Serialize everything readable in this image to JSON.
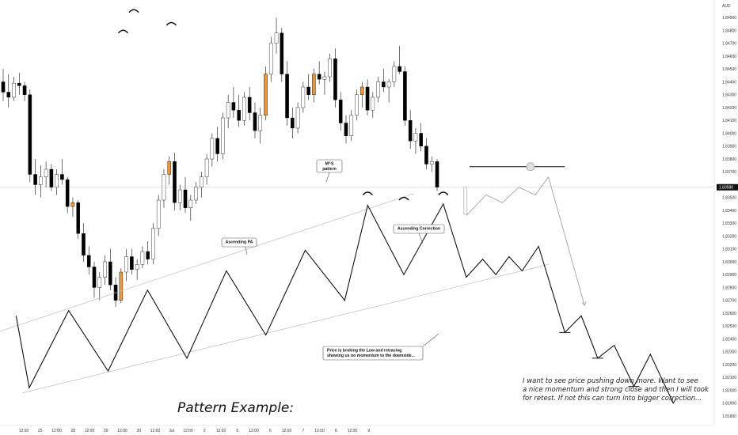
{
  "chart_data": {
    "type": "candlestick",
    "symbol_unit": "AUD",
    "current_price": "1.83580",
    "ylim": [
      1.818,
      1.85
    ],
    "y_ticks": [
      "1.84900",
      "1.84800",
      "1.84700",
      "1.84600",
      "1.84500",
      "1.84400",
      "1.84300",
      "1.84200",
      "1.84100",
      "1.84000",
      "1.83900",
      "1.83800",
      "1.83700",
      "1.83500",
      "1.83400",
      "1.83300",
      "1.83200",
      "1.83100",
      "1.83000",
      "1.82900",
      "1.82800",
      "1.82700",
      "1.82600",
      "1.82500",
      "1.82400",
      "1.82300",
      "1.82200",
      "1.82100",
      "1.82000",
      "1.81900",
      "1.81800"
    ],
    "x_ticks": [
      "12:00",
      "25",
      "12:00",
      "28",
      "12:00",
      "29",
      "12:00",
      "30",
      "12:00",
      "Jul",
      "12:00",
      "2",
      "12:00",
      "5",
      "12:00",
      "6",
      "12:00",
      "7",
      "12:00",
      "8",
      "12:00",
      "9"
    ],
    "candles": [
      [
        1.844,
        1.845,
        1.8425,
        1.8432
      ],
      [
        1.8432,
        1.8446,
        1.842,
        1.8428
      ],
      [
        1.8428,
        1.8444,
        1.8425,
        1.8439
      ],
      [
        1.8439,
        1.8447,
        1.843,
        1.8437
      ],
      [
        1.8437,
        1.844,
        1.8425,
        1.843
      ],
      [
        1.843,
        1.8434,
        1.8362,
        1.8368
      ],
      [
        1.8368,
        1.838,
        1.8352,
        1.836
      ],
      [
        1.836,
        1.8375,
        1.835,
        1.8366
      ],
      [
        1.8366,
        1.8378,
        1.8358,
        1.8372
      ],
      [
        1.8372,
        1.8376,
        1.8355,
        1.8358
      ],
      [
        1.8358,
        1.8372,
        1.8352,
        1.8368
      ],
      [
        1.8368,
        1.838,
        1.836,
        1.8364
      ],
      [
        1.8364,
        1.8366,
        1.8338,
        1.8343
      ],
      [
        1.8343,
        1.835,
        1.8335,
        1.8346
      ],
      [
        1.8346,
        1.8348,
        1.8318,
        1.8322
      ],
      [
        1.8322,
        1.833,
        1.83,
        1.8305
      ],
      [
        1.8305,
        1.8312,
        1.829,
        1.8296
      ],
      [
        1.8296,
        1.83,
        1.8272,
        1.828
      ],
      [
        1.828,
        1.8292,
        1.827,
        1.8288
      ],
      [
        1.8288,
        1.8305,
        1.8282,
        1.83
      ],
      [
        1.83,
        1.831,
        1.8278,
        1.8282
      ],
      [
        1.8282,
        1.8288,
        1.8265,
        1.827
      ],
      [
        1.827,
        1.8295,
        1.8268,
        1.8292
      ],
      [
        1.8292,
        1.831,
        1.8285,
        1.8304
      ],
      [
        1.8304,
        1.831,
        1.829,
        1.8294
      ],
      [
        1.8294,
        1.8302,
        1.8286,
        1.8298
      ],
      [
        1.8298,
        1.8312,
        1.8295,
        1.8308
      ],
      [
        1.8308,
        1.8316,
        1.8298,
        1.8302
      ],
      [
        1.8302,
        1.833,
        1.8298,
        1.8326
      ],
      [
        1.8326,
        1.8352,
        1.832,
        1.8348
      ],
      [
        1.8348,
        1.8372,
        1.8342,
        1.8368
      ],
      [
        1.8368,
        1.8382,
        1.836,
        1.8378
      ],
      [
        1.8378,
        1.8385,
        1.834,
        1.8346
      ],
      [
        1.8346,
        1.836,
        1.834,
        1.8356
      ],
      [
        1.8356,
        1.8366,
        1.8338,
        1.8342
      ],
      [
        1.8342,
        1.8352,
        1.8332,
        1.8348
      ],
      [
        1.8348,
        1.8362,
        1.8345,
        1.8358
      ],
      [
        1.8358,
        1.837,
        1.835,
        1.8366
      ],
      [
        1.8366,
        1.8384,
        1.836,
        1.838
      ],
      [
        1.838,
        1.84,
        1.8374,
        1.8396
      ],
      [
        1.8396,
        1.8405,
        1.8378,
        1.8384
      ],
      [
        1.8384,
        1.8416,
        1.838,
        1.8412
      ],
      [
        1.8412,
        1.843,
        1.8404,
        1.8424
      ],
      [
        1.8424,
        1.8436,
        1.8412,
        1.8418
      ],
      [
        1.8418,
        1.843,
        1.8405,
        1.841
      ],
      [
        1.841,
        1.8432,
        1.8406,
        1.8428
      ],
      [
        1.8428,
        1.8436,
        1.841,
        1.8416
      ],
      [
        1.8416,
        1.8424,
        1.8396,
        1.8402
      ],
      [
        1.8402,
        1.842,
        1.8392,
        1.8414
      ],
      [
        1.8414,
        1.8452,
        1.841,
        1.8446
      ],
      [
        1.8446,
        1.8475,
        1.844,
        1.847
      ],
      [
        1.847,
        1.849,
        1.8462,
        1.8478
      ],
      [
        1.8478,
        1.8482,
        1.844,
        1.8446
      ],
      [
        1.8446,
        1.8456,
        1.8406,
        1.8412
      ],
      [
        1.8412,
        1.842,
        1.8396,
        1.8404
      ],
      [
        1.8404,
        1.8424,
        1.84,
        1.842
      ],
      [
        1.842,
        1.844,
        1.8416,
        1.8436
      ],
      [
        1.8436,
        1.8446,
        1.8426,
        1.843
      ],
      [
        1.843,
        1.845,
        1.8424,
        1.8446
      ],
      [
        1.8446,
        1.8456,
        1.8438,
        1.8442
      ],
      [
        1.8442,
        1.8448,
        1.843,
        1.8444
      ],
      [
        1.8444,
        1.8462,
        1.844,
        1.8458
      ],
      [
        1.8458,
        1.8466,
        1.842,
        1.8426
      ],
      [
        1.8426,
        1.8432,
        1.8402,
        1.8408
      ],
      [
        1.8408,
        1.8414,
        1.8392,
        1.8398
      ],
      [
        1.8398,
        1.8418,
        1.8394,
        1.8414
      ],
      [
        1.8414,
        1.8434,
        1.841,
        1.843
      ],
      [
        1.843,
        1.844,
        1.842,
        1.8436
      ],
      [
        1.8436,
        1.8442,
        1.8414,
        1.8418
      ],
      [
        1.8418,
        1.8432,
        1.8412,
        1.8428
      ],
      [
        1.8428,
        1.8444,
        1.8424,
        1.844
      ],
      [
        1.844,
        1.845,
        1.8432,
        1.8436
      ],
      [
        1.8436,
        1.8442,
        1.8424,
        1.844
      ],
      [
        1.844,
        1.8456,
        1.8436,
        1.8452
      ],
      [
        1.8452,
        1.8468,
        1.8446,
        1.8448
      ],
      [
        1.8448,
        1.8452,
        1.8406,
        1.841
      ],
      [
        1.841,
        1.8418,
        1.8388,
        1.8394
      ],
      [
        1.8394,
        1.8404,
        1.8384,
        1.84
      ],
      [
        1.84,
        1.8408,
        1.8386,
        1.839
      ],
      [
        1.839,
        1.8396,
        1.8372,
        1.8376
      ],
      [
        1.8376,
        1.8382,
        1.837,
        1.8378
      ],
      [
        1.8378,
        1.838,
        1.8355,
        1.8358
      ]
    ],
    "pattern_zigzag": [
      [
        0.2,
        1.8258
      ],
      [
        0.6,
        1.8202
      ],
      [
        1.8,
        1.8262
      ],
      [
        3.0,
        1.8215
      ],
      [
        4.2,
        1.8278
      ],
      [
        5.4,
        1.8225
      ],
      [
        6.6,
        1.8293
      ],
      [
        7.8,
        1.8243
      ],
      [
        9.0,
        1.8309
      ],
      [
        10.2,
        1.827
      ],
      [
        10.9,
        1.8344
      ],
      [
        12.0,
        1.829
      ],
      [
        13.2,
        1.8345
      ],
      [
        13.9,
        1.8288
      ],
      [
        14.4,
        1.8302
      ],
      [
        14.8,
        1.829
      ],
      [
        15.2,
        1.8304
      ],
      [
        15.6,
        1.8293
      ],
      [
        16.1,
        1.8312
      ],
      [
        16.9,
        1.8245
      ],
      [
        17.4,
        1.8258
      ],
      [
        17.9,
        1.8225
      ],
      [
        18.4,
        1.8235
      ],
      [
        19.0,
        1.8203
      ],
      [
        19.5,
        1.8228
      ],
      [
        20.2,
        1.819
      ]
    ],
    "channel_upper": [
      [
        -0.4,
        1.8245
      ],
      [
        12.3,
        1.8353
      ]
    ],
    "channel_lower": [
      [
        0.4,
        1.8198
      ],
      [
        16.4,
        1.8298
      ]
    ],
    "peaks": [
      [
        10.9,
        1.8352
      ],
      [
        12.0,
        1.8348
      ],
      [
        13.2,
        1.8352
      ]
    ],
    "projection_path": [
      [
        13.9,
        1.8336
      ],
      [
        14.5,
        1.8352
      ],
      [
        15.0,
        1.8346
      ],
      [
        15.5,
        1.8358
      ],
      [
        16.0,
        1.8352
      ],
      [
        16.4,
        1.8366
      ]
    ],
    "projection_arrow": [
      [
        16.4,
        1.8366
      ],
      [
        17.5,
        1.8266
      ]
    ],
    "resistance_line": [
      [
        14.0,
        1.8374
      ],
      [
        16.9,
        1.8374
      ]
    ],
    "annotations": [
      {
        "lines": [
          "M^S",
          "pattern"
        ]
      },
      {
        "lines": [
          "Ascending PA"
        ]
      },
      {
        "lines": [
          "Ascending Correction"
        ]
      },
      {
        "lines": [
          "Price is broking the Low and retracing",
          "showing us no momentum to the downside..."
        ]
      }
    ],
    "note_lines": [
      "I want to see price pushing down more. Want to see",
      "a nice momentum and strong close and then I will took",
      "for retest. If not this can turn into bigger correction..."
    ],
    "pattern_title": "Pattern Example:",
    "colors": {
      "bull": "#ffffff",
      "bear": "#000000",
      "accent": "#e8963d",
      "grid": "#c8c8c8"
    }
  }
}
